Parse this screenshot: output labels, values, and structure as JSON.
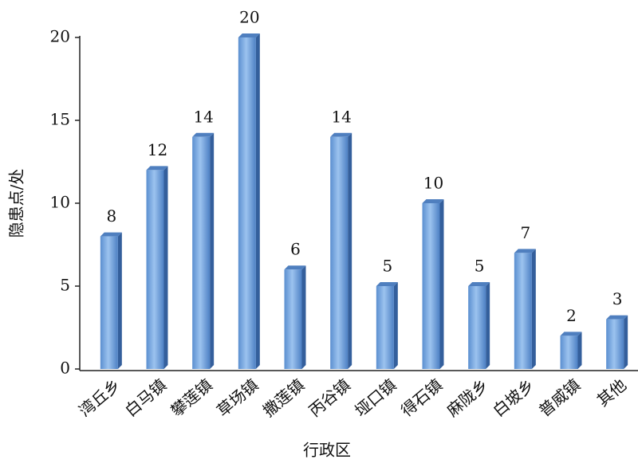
{
  "chart_data": {
    "type": "bar",
    "x_label": "行政区",
    "y_label": "隐患点/处",
    "categories": [
      "湾丘乡",
      "白马镇",
      "攀莲镇",
      "草场镇",
      "撒莲镇",
      "丙谷镇",
      "垭口镇",
      "得石镇",
      "麻陇乡",
      "白坡乡",
      "普威镇",
      "其他"
    ],
    "values": [
      8,
      12,
      14,
      20,
      6,
      14,
      5,
      10,
      5,
      7,
      2,
      3
    ],
    "color": "#6fa1dc",
    "ylim": [
      0,
      20
    ],
    "yticks": [
      0,
      5,
      10,
      15,
      20
    ]
  }
}
